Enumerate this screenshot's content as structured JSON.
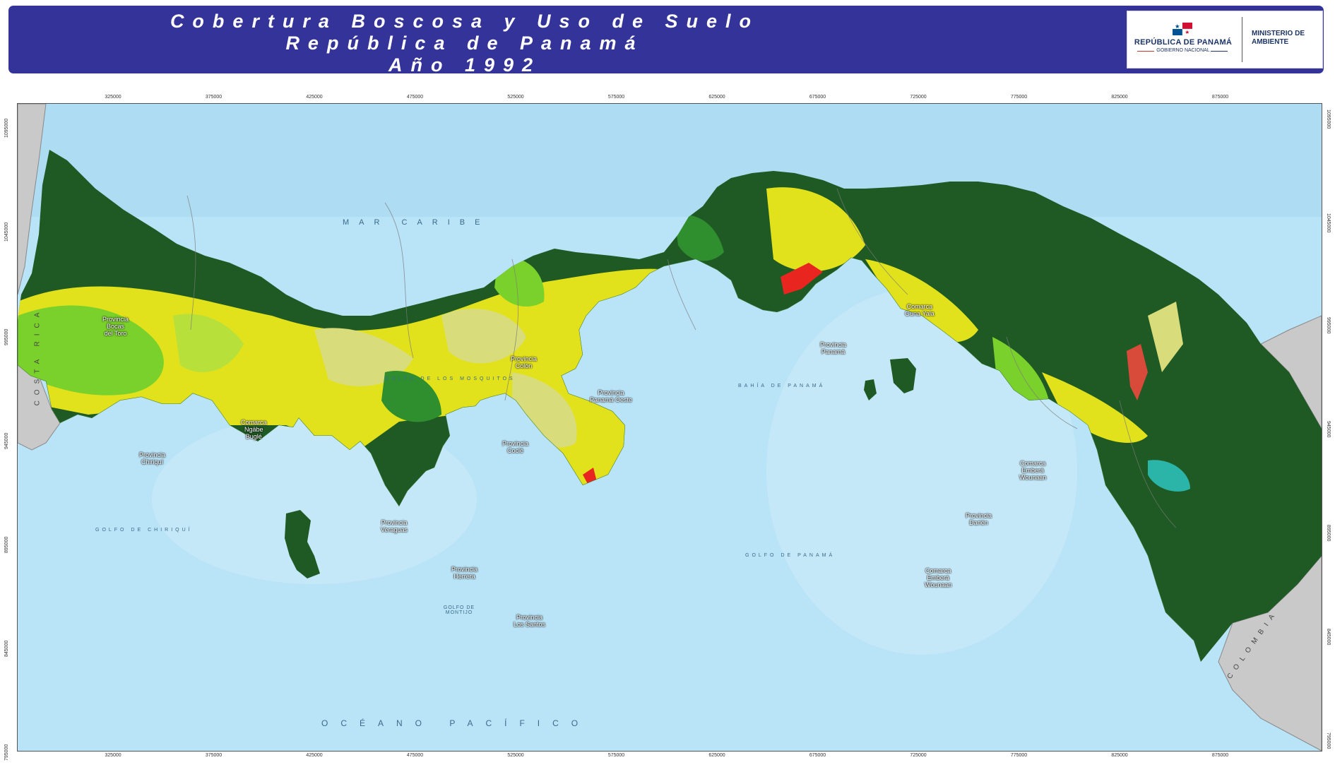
{
  "title": {
    "line1": "Cobertura Boscosa y Uso de Suelo",
    "line2": "República de Panamá",
    "line3": "Año 1992"
  },
  "logos": {
    "government": "REPÚBLICA DE PANAMÁ",
    "government_sub": "GOBIERNO NACIONAL",
    "ministry": "MINISTERIO DE AMBIENTE"
  },
  "grid": {
    "x_ticks": [
      "325000",
      "375000",
      "425000",
      "475000",
      "525000",
      "575000",
      "625000",
      "675000",
      "725000",
      "775000",
      "825000",
      "875000"
    ],
    "y_ticks": [
      "1095000",
      "1045000",
      "995000",
      "945000",
      "895000",
      "845000",
      "795000"
    ]
  },
  "water_labels": {
    "caribbean": "MAR CARIBE",
    "pacific": "OCÉANO PACÍFICO",
    "golfo_chiriqui": "GOLFO DE CHIRIQUÍ",
    "golfo_panama": "GOLFO DE PANAMÁ",
    "bahia_panama": "BAHÍA DE PANAMÁ",
    "golfo_mosquitos": "GOLFO DE LOS MOSQUITOS",
    "golfo_montijo": "GOLFO DE MONTIJO"
  },
  "countries": {
    "costa_rica": "COSTA RICA",
    "colombia": "COLOMBIA"
  },
  "regions": {
    "bocas": "Provincia\nBocas\ndel Toro",
    "ngabe": "Comarca\nNgäbe\nBuglé",
    "chiriqui": "Provincia\nChiriquí",
    "veraguas": "Provincia\nVeraguas",
    "colon": "Provincia\nColón",
    "cocle": "Provincia\nCoclé",
    "panama_oeste": "Provincia\nPanamá Oeste",
    "panama": "Provincia\nPanamá",
    "guna_yala": "Comarca\nGuna Yala",
    "herrera": "Provincia\nHerrera",
    "los_santos": "Provincia\nLos Santos",
    "darien": "Provincia\nDarién",
    "embera_wounaan_1": "Comarca\nEmberá\nWounaan",
    "embera_wounaan_2": "Comarca\nEmberá\nWounaan"
  },
  "colors": {
    "banner": "#33339a",
    "ocean": "#b9e3f6",
    "mature_forest": "#1f5a24",
    "secondary_forest": "#2f8f2f",
    "shrubland": "#7ad12b",
    "agriculture": "#e2e21c",
    "pasture": "#d8dc7a",
    "mangrove": "#9b57d6",
    "urban": "#e8251e",
    "wetland": "#2bb5a8",
    "neighbor_land": "#c9c9c9"
  }
}
